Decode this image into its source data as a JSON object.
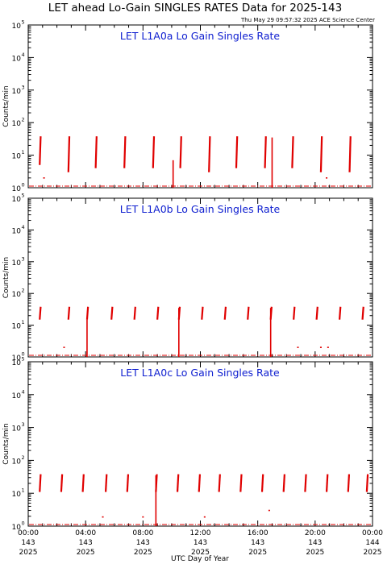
{
  "figure": {
    "title": "LET ahead Lo-Gain SINGLES RATES Data for 2025-143",
    "timestamp": "Thu May 29 09:57:32 2025 ACE Science Center",
    "xlabel": "UTC Day of Year",
    "trace_color": "#e00000",
    "panel_title_color": "#1020d0"
  },
  "chart_data": [
    {
      "type": "line",
      "title": "LET L1A0a Lo Gain Singles Rate",
      "ylabel": "Counts/min",
      "yscale": "log",
      "ylim": [
        1,
        100000
      ],
      "ytick_labels": [
        "10^0",
        "10^1",
        "10^2",
        "10^3",
        "10^4",
        "10^5"
      ],
      "xlim": [
        0,
        24
      ],
      "x_units": "hours of day 143",
      "baseline": 1.0,
      "spikes": [
        {
          "x": 0.8,
          "low": 5,
          "high": 38
        },
        {
          "x": 2.8,
          "low": 3,
          "high": 38
        },
        {
          "x": 4.7,
          "low": 4,
          "high": 38
        },
        {
          "x": 6.7,
          "low": 4,
          "high": 38
        },
        {
          "x": 8.7,
          "low": 4,
          "high": 38
        },
        {
          "x": 10.6,
          "low": 4,
          "high": 38
        },
        {
          "x": 12.6,
          "low": 3,
          "high": 38
        },
        {
          "x": 14.5,
          "low": 4,
          "high": 38
        },
        {
          "x": 16.5,
          "low": 4,
          "high": 38
        },
        {
          "x": 18.4,
          "low": 4,
          "high": 38
        },
        {
          "x": 20.4,
          "low": 3,
          "high": 38
        },
        {
          "x": 22.4,
          "low": 3,
          "high": 38
        }
      ],
      "dropouts": [
        {
          "x": 10.1,
          "low": 1,
          "high": 7
        },
        {
          "x": 17.0,
          "low": 1,
          "high": 35
        }
      ],
      "scatter": [
        {
          "x": 1.1,
          "y": 2.0
        },
        {
          "x": 20.8,
          "y": 2.0
        }
      ]
    },
    {
      "type": "line",
      "title": "LET L1A0b Lo Gain Singles Rate",
      "ylabel": "Counts/min",
      "yscale": "log",
      "ylim": [
        1,
        100000
      ],
      "ytick_labels": [
        "10^0",
        "10^1",
        "10^2",
        "10^3",
        "10^4",
        "10^5"
      ],
      "xlim": [
        0,
        24
      ],
      "x_units": "hours of day 143",
      "baseline": 1.0,
      "spikes": [
        {
          "x": 0.8,
          "low": 15,
          "high": 38
        },
        {
          "x": 2.8,
          "low": 15,
          "high": 38
        },
        {
          "x": 4.1,
          "low": 15,
          "high": 38
        },
        {
          "x": 5.8,
          "low": 15,
          "high": 38
        },
        {
          "x": 7.4,
          "low": 15,
          "high": 38
        },
        {
          "x": 9.0,
          "low": 15,
          "high": 38
        },
        {
          "x": 10.5,
          "low": 15,
          "high": 38
        },
        {
          "x": 12.1,
          "low": 15,
          "high": 38
        },
        {
          "x": 13.7,
          "low": 15,
          "high": 38
        },
        {
          "x": 15.3,
          "low": 15,
          "high": 38
        },
        {
          "x": 16.9,
          "low": 15,
          "high": 38
        },
        {
          "x": 18.5,
          "low": 15,
          "high": 38
        },
        {
          "x": 20.1,
          "low": 15,
          "high": 38
        },
        {
          "x": 21.7,
          "low": 15,
          "high": 38
        },
        {
          "x": 23.3,
          "low": 15,
          "high": 38
        }
      ],
      "dropouts": [
        {
          "x": 4.1,
          "low": 1,
          "high": 15
        },
        {
          "x": 10.5,
          "low": 1,
          "high": 35
        },
        {
          "x": 16.9,
          "low": 1,
          "high": 35
        }
      ],
      "scatter": [
        {
          "x": 2.5,
          "y": 2.0
        },
        {
          "x": 18.8,
          "y": 2.0
        },
        {
          "x": 20.4,
          "y": 2.0
        },
        {
          "x": 20.9,
          "y": 2.0
        }
      ]
    },
    {
      "type": "line",
      "title": "LET L1A0c Lo Gain Singles Rate",
      "ylabel": "Counts/min",
      "yscale": "log",
      "ylim": [
        1,
        100000
      ],
      "ytick_labels": [
        "10^0",
        "10^1",
        "10^2",
        "10^3",
        "10^4",
        "10^5"
      ],
      "xlim": [
        0,
        24
      ],
      "x_units": "hours of day 143",
      "baseline": 1.0,
      "spikes": [
        {
          "x": 0.8,
          "low": 11,
          "high": 38
        },
        {
          "x": 2.3,
          "low": 11,
          "high": 38
        },
        {
          "x": 3.8,
          "low": 11,
          "high": 38
        },
        {
          "x": 5.4,
          "low": 11,
          "high": 38
        },
        {
          "x": 6.9,
          "low": 11,
          "high": 38
        },
        {
          "x": 8.9,
          "low": 11,
          "high": 38
        },
        {
          "x": 10.4,
          "low": 11,
          "high": 38
        },
        {
          "x": 11.9,
          "low": 11,
          "high": 38
        },
        {
          "x": 13.3,
          "low": 11,
          "high": 38
        },
        {
          "x": 14.8,
          "low": 11,
          "high": 38
        },
        {
          "x": 16.3,
          "low": 11,
          "high": 38
        },
        {
          "x": 17.8,
          "low": 11,
          "high": 38
        },
        {
          "x": 19.3,
          "low": 11,
          "high": 38
        },
        {
          "x": 20.8,
          "low": 11,
          "high": 38
        },
        {
          "x": 22.3,
          "low": 11,
          "high": 38
        },
        {
          "x": 23.6,
          "low": 11,
          "high": 38
        }
      ],
      "dropouts": [
        {
          "x": 8.9,
          "low": 1,
          "high": 35
        }
      ],
      "scatter": [
        {
          "x": 5.2,
          "y": 1.9
        },
        {
          "x": 8.0,
          "y": 1.9
        },
        {
          "x": 12.3,
          "y": 1.9
        },
        {
          "x": 16.8,
          "y": 3.0
        }
      ]
    }
  ],
  "x_axis": {
    "tick_times": [
      "00:00",
      "04:00",
      "08:00",
      "12:00",
      "16:00",
      "20:00",
      "00:00"
    ],
    "tick_days": [
      "143",
      "143",
      "143",
      "143",
      "143",
      "143",
      "144"
    ],
    "tick_years": [
      "2025",
      "2025",
      "2025",
      "2025",
      "2025",
      "2025",
      "2025"
    ]
  }
}
